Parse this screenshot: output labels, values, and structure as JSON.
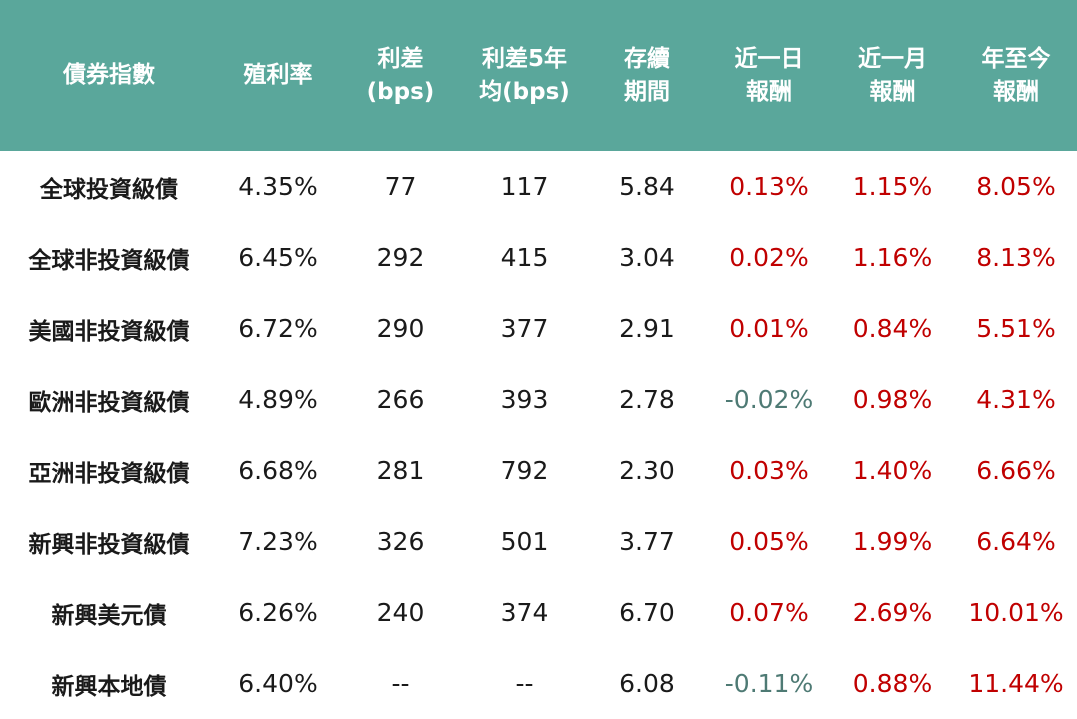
{
  "colors": {
    "header_bg": "#5aa79b",
    "header_text": "#ffffff",
    "text": "#1a1a1a",
    "positive": "#c00000",
    "negative": "#4e7a74"
  },
  "headers": [
    "債券指數",
    "殖利率",
    "利差\n(bps)",
    "利差5年\n均(bps)",
    "存續\n期間",
    "近一日\n報酬",
    "近一月\n報酬",
    "年至今\n報酬"
  ],
  "rows": [
    [
      "全球投資級債",
      "4.35%",
      "77",
      "117",
      "5.84",
      "0.13%",
      "1.15%",
      "8.05%"
    ],
    [
      "全球非投資級債",
      "6.45%",
      "292",
      "415",
      "3.04",
      "0.02%",
      "1.16%",
      "8.13%"
    ],
    [
      "美國非投資級債",
      "6.72%",
      "290",
      "377",
      "2.91",
      "0.01%",
      "0.84%",
      "5.51%"
    ],
    [
      "歐洲非投資級債",
      "4.89%",
      "266",
      "393",
      "2.78",
      "-0.02%",
      "0.98%",
      "4.31%"
    ],
    [
      "亞洲非投資級債",
      "6.68%",
      "281",
      "792",
      "2.30",
      "0.03%",
      "1.40%",
      "6.66%"
    ],
    [
      "新興非投資級債",
      "7.23%",
      "326",
      "501",
      "3.77",
      "0.05%",
      "1.99%",
      "6.64%"
    ],
    [
      "新興美元債",
      "6.26%",
      "240",
      "374",
      "6.70",
      "0.07%",
      "2.69%",
      "10.01%"
    ],
    [
      "新興本地債",
      "6.40%",
      "--",
      "--",
      "6.08",
      "-0.11%",
      "0.88%",
      "11.44%"
    ]
  ]
}
